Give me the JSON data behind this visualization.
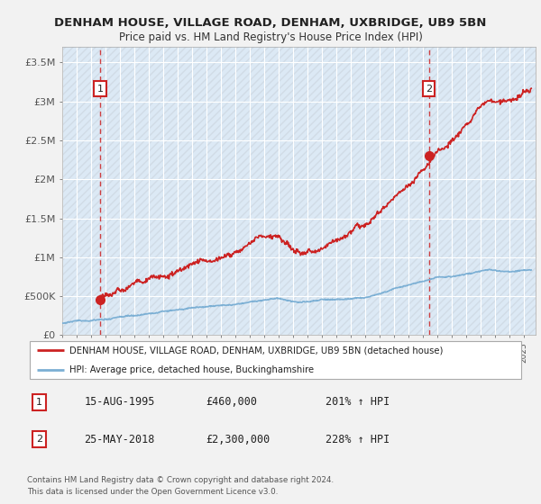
{
  "title": "DENHAM HOUSE, VILLAGE ROAD, DENHAM, UXBRIDGE, UB9 5BN",
  "subtitle": "Price paid vs. HM Land Registry's House Price Index (HPI)",
  "ylabel_ticks": [
    "£0",
    "£500K",
    "£1M",
    "£1.5M",
    "£2M",
    "£2.5M",
    "£3M",
    "£3.5M"
  ],
  "ytick_values": [
    0,
    500000,
    1000000,
    1500000,
    2000000,
    2500000,
    3000000,
    3500000
  ],
  "ylim": [
    0,
    3700000
  ],
  "hpi_color": "#7bafd4",
  "price_color": "#cc2222",
  "marker1_value": 460000,
  "marker1_x": 1995.62,
  "marker2_value": 2300000,
  "marker2_x": 2018.4,
  "xmin": 1993.0,
  "xmax": 2025.8,
  "xticks": [
    1993,
    1994,
    1995,
    1996,
    1997,
    1998,
    1999,
    2000,
    2001,
    2002,
    2003,
    2004,
    2005,
    2006,
    2007,
    2008,
    2009,
    2010,
    2011,
    2012,
    2013,
    2014,
    2015,
    2016,
    2017,
    2018,
    2019,
    2020,
    2021,
    2022,
    2023,
    2024,
    2025
  ],
  "legend_line1": "DENHAM HOUSE, VILLAGE ROAD, DENHAM, UXBRIDGE, UB9 5BN (detached house)",
  "legend_line2": "HPI: Average price, detached house, Buckinghamshire",
  "annotation1": [
    "1",
    "15-AUG-1995",
    "£460,000",
    "201% ↑ HPI"
  ],
  "annotation2": [
    "2",
    "25-MAY-2018",
    "£2,300,000",
    "228% ↑ HPI"
  ],
  "footnote": "Contains HM Land Registry data © Crown copyright and database right 2024.\nThis data is licensed under the Open Government Licence v3.0.",
  "background_color": "#f2f2f2",
  "plot_bg_color": "#dce9f5",
  "grid_color": "#ffffff",
  "hatch_bg": "#e8e8e8"
}
